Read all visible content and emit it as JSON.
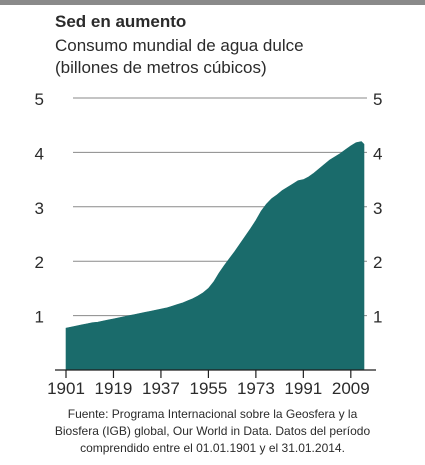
{
  "header": {
    "title": "Sed en aumento",
    "subtitle_line1": "Consumo mundial de agua dulce",
    "subtitle_line2": "(billones de metros cúbicos)"
  },
  "source": {
    "line1": "Fuente: Programa Internacional sobre la Geosfera y la",
    "line2": "Biosfera (IGB) global, Our World in Data. Datos del período",
    "line3": "comprendido entre el 01.01.1901 y el 31.01.2014."
  },
  "colors": {
    "area": "#1a6b6b",
    "grid": "#8a8a8a",
    "text": "#2b2b2b"
  },
  "chart_data": {
    "type": "area",
    "title": "Sed en aumento",
    "subtitle": "Consumo mundial de agua dulce (billones de metros cúbicos)",
    "xlabel": "",
    "ylabel": "",
    "xlim": [
      1901,
      2014
    ],
    "ylim": [
      0,
      5
    ],
    "y_ticks": [
      1,
      2,
      3,
      4,
      5
    ],
    "x_ticks": [
      1901,
      1919,
      1937,
      1955,
      1973,
      1991,
      2009
    ],
    "grid": true,
    "legend": "none",
    "series": [
      {
        "x": [
          1901,
          1903,
          1905,
          1907,
          1909,
          1911,
          1913,
          1915,
          1917,
          1919,
          1921,
          1923,
          1925,
          1927,
          1929,
          1931,
          1933,
          1935,
          1937,
          1939,
          1941,
          1943,
          1945,
          1947,
          1949,
          1951,
          1953,
          1955,
          1957,
          1959,
          1961,
          1963,
          1965,
          1967,
          1969,
          1971,
          1973,
          1975,
          1977,
          1979,
          1981,
          1983,
          1985,
          1987,
          1989,
          1991,
          1993,
          1995,
          1997,
          1999,
          2001,
          2003,
          2005,
          2007,
          2009,
          2011,
          2013,
          2014
        ],
        "values": [
          0.77,
          0.79,
          0.81,
          0.83,
          0.85,
          0.87,
          0.88,
          0.9,
          0.92,
          0.94,
          0.96,
          0.98,
          1.0,
          1.02,
          1.04,
          1.06,
          1.08,
          1.1,
          1.12,
          1.14,
          1.17,
          1.2,
          1.23,
          1.27,
          1.31,
          1.36,
          1.42,
          1.5,
          1.62,
          1.78,
          1.92,
          2.05,
          2.18,
          2.32,
          2.46,
          2.6,
          2.75,
          2.92,
          3.05,
          3.15,
          3.22,
          3.3,
          3.36,
          3.42,
          3.48,
          3.5,
          3.55,
          3.62,
          3.7,
          3.78,
          3.86,
          3.92,
          3.98,
          4.05,
          4.12,
          4.18,
          4.2,
          4.15
        ]
      }
    ]
  }
}
